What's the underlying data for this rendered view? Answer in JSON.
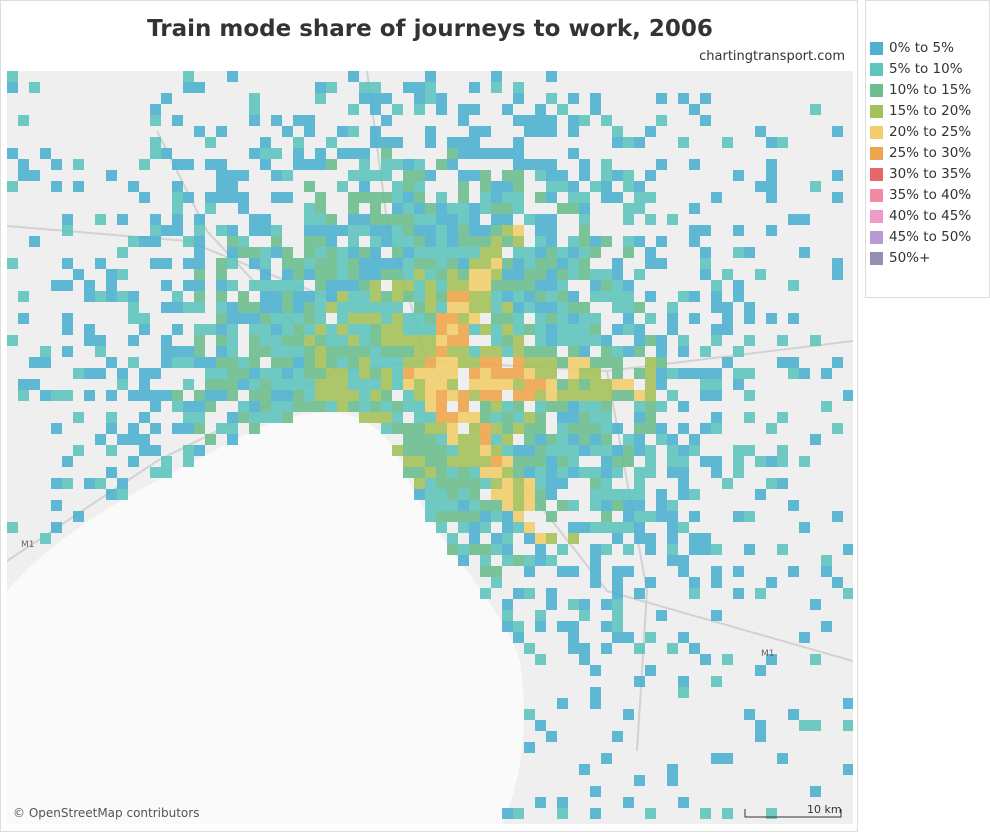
{
  "header": {
    "title": "Train mode share of journeys to work, 2006",
    "source": "chartingtransport.com"
  },
  "legend": {
    "items": [
      {
        "label": "0% to 5%",
        "color": "#4eb1cf"
      },
      {
        "label": "5% to 10%",
        "color": "#5ec4bd"
      },
      {
        "label": "10% to 15%",
        "color": "#6dbe8e"
      },
      {
        "label": "15% to 20%",
        "color": "#a5c15b"
      },
      {
        "label": "20% to 25%",
        "color": "#f1cd6c"
      },
      {
        "label": "25% to 30%",
        "color": "#eda64c"
      },
      {
        "label": "30% to 35%",
        "color": "#e8656a"
      },
      {
        "label": "35% to 40%",
        "color": "#f28aa2"
      },
      {
        "label": "40% to 45%",
        "color": "#ee9bc9"
      },
      {
        "label": "45% to 50%",
        "color": "#b99ad3"
      },
      {
        "label": "50%+",
        "color": "#9490b0"
      }
    ]
  },
  "map": {
    "road_labels": [
      "M1",
      "M1"
    ],
    "scale_label": "10 km",
    "attribution": "© OpenStreetMap contributors"
  }
}
